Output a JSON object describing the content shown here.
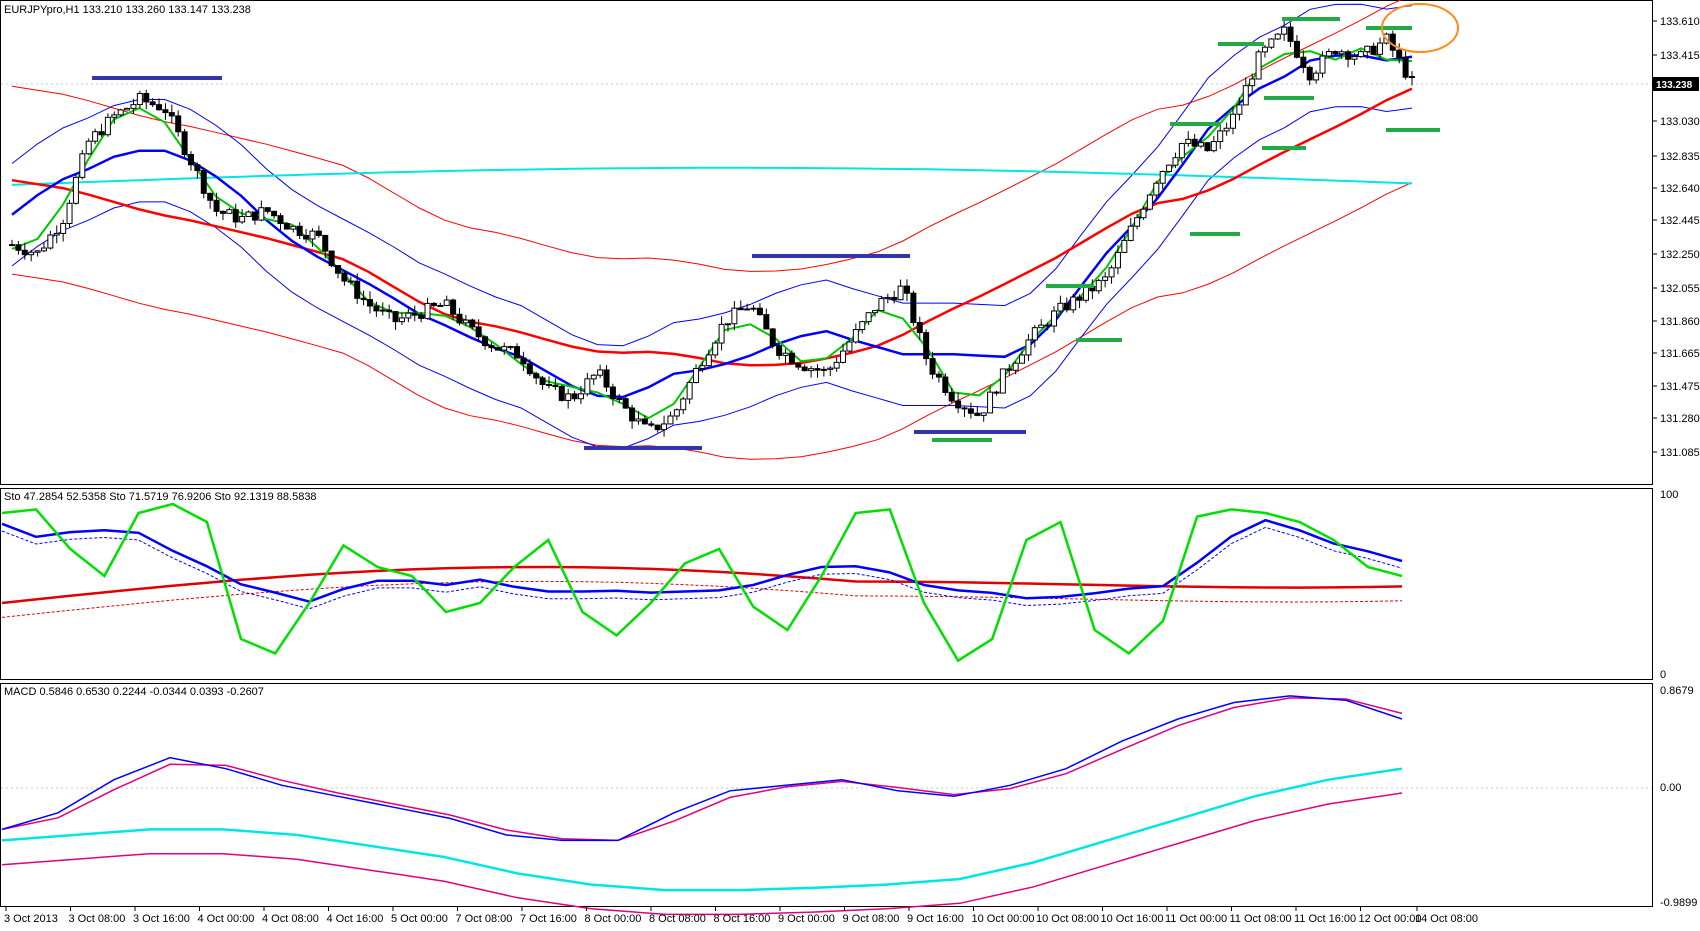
{
  "symbol_header": "EURJPYpro,H1  133.210 133.260 133.147 133.238",
  "price_pane": {
    "yticks": [
      "133.610",
      "133.415",
      "133.238",
      "133.030",
      "132.835",
      "132.640",
      "132.445",
      "132.250",
      "132.055",
      "131.860",
      "131.665",
      "131.475",
      "131.280",
      "131.085"
    ],
    "current_price_tag": "133.238",
    "annotations": [
      "orange-circle",
      "blue-resistance",
      "blue-support",
      "green-levels"
    ]
  },
  "stoch_pane": {
    "header": "Sto 47.2854 52.5358   Sto 71.5719 76.9206   Sto 92.1319 88.5838",
    "ytick_top": "100",
    "ytick_bottom": "0"
  },
  "macd_pane": {
    "header": "MACD 0.5846 0.6530 0.2244 -0.0344 0.0393 -0.2607",
    "ytick_top": "0.8679",
    "ytick_mid": "0.00",
    "ytick_bottom": "-0.9899"
  },
  "xaxis": {
    "labels": [
      "3 Oct 2013",
      "3 Oct 08:00",
      "3 Oct 16:00",
      "4 Oct 00:00",
      "4 Oct 08:00",
      "4 Oct 16:00",
      "5 Oct 00:00",
      "7 Oct 08:00",
      "7 Oct 16:00",
      "8 Oct 00:00",
      "8 Oct 08:00",
      "8 Oct 16:00",
      "9 Oct 00:00",
      "9 Oct 08:00",
      "9 Oct 16:00",
      "10 Oct 00:00",
      "10 Oct 08:00",
      "10 Oct 16:00",
      "11 Oct 00:00",
      "11 Oct 08:00",
      "11 Oct 16:00",
      "12 Oct 00:00",
      "14 Oct 08:00"
    ]
  },
  "chart_data": {
    "type": "line",
    "title": "EURJPYpro,H1",
    "price_series_close": [
      132.3,
      132.25,
      132.45,
      132.9,
      133.05,
      133.15,
      133.1,
      132.8,
      132.5,
      132.45,
      132.5,
      132.4,
      132.35,
      132.1,
      131.95,
      131.85,
      131.9,
      131.95,
      131.8,
      131.7,
      131.65,
      131.45,
      131.4,
      131.55,
      131.35,
      131.2,
      131.3,
      131.6,
      131.85,
      131.95,
      131.7,
      131.6,
      131.55,
      131.75,
      131.95,
      132.05,
      131.6,
      131.4,
      131.3,
      131.55,
      131.75,
      131.9,
      132.0,
      132.1,
      132.4,
      132.7,
      132.9,
      132.85,
      133.05,
      133.4,
      133.55,
      133.3,
      133.45,
      133.4,
      133.5,
      133.25
    ],
    "colors": {
      "bullish": "#ffffff",
      "bearish": "#000000",
      "sma_long": "#ff0000",
      "sma_fast": "#00c800",
      "sma_mid": "#0000ff",
      "cyan": "#00e5e5",
      "bands_blue": "#0000ff",
      "bands_red": "#ff0000",
      "orange": "#ff8c1a",
      "stoch_green": "#00e000",
      "stoch_blue": "#0000ff",
      "stoch_red": "#e00000",
      "macd_blue": "#0000ff",
      "macd_magenta": "#e0007e",
      "macd_cyan": "#00e5e5"
    }
  }
}
